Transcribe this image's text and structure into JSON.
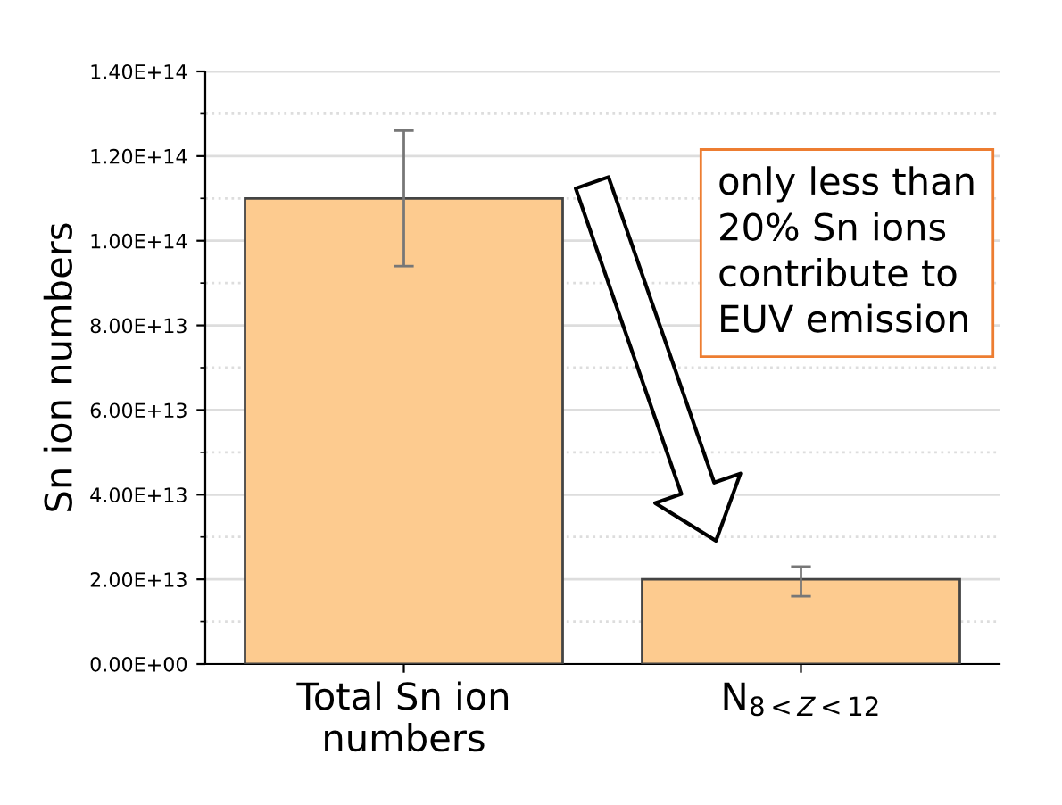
{
  "chart_data": {
    "type": "bar",
    "ylabel": "Sn ion numbers",
    "categories": [
      "Total Sn ion\nnumbers",
      "N$_{8<Z<12}$"
    ],
    "values": [
      110000000000000.0,
      20000000000000.0
    ],
    "errors": [
      [
        94000000000000.0,
        126000000000000.0
      ],
      [
        16000000000000.0,
        23000000000000.0
      ]
    ],
    "color": "#fdcb8f",
    "ylim": [
      0,
      140000000000000.0
    ],
    "yticks": [
      {
        "value": 0,
        "label": "0.00E+00"
      },
      {
        "value": 20000000000000.0,
        "label": "2.00E+13"
      },
      {
        "value": 40000000000000.0,
        "label": "4.00E+13"
      },
      {
        "value": 60000000000000.0,
        "label": "6.00E+13"
      },
      {
        "value": 80000000000000.0,
        "label": "8.00E+13"
      },
      {
        "value": 100000000000000.0,
        "label": "1.00E+14"
      },
      {
        "value": 120000000000000.0,
        "label": "1.20E+14"
      },
      {
        "value": 140000000000000.0,
        "label": "1.40E+14"
      }
    ],
    "grid": "y",
    "annotations": [
      "only less than\n20% Sn ions\ncontribute to\nEUV emission"
    ]
  }
}
